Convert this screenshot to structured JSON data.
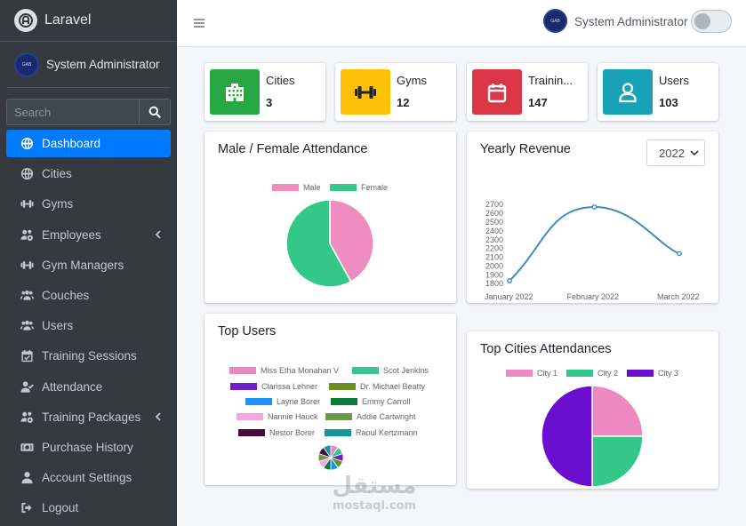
{
  "brand": {
    "name": "Laravel"
  },
  "user": {
    "name": "System Administrator",
    "avatar_text": "GAB"
  },
  "search": {
    "placeholder": "Search"
  },
  "sidebar": {
    "items": [
      {
        "label": "Dashboard",
        "icon": "globe-icon",
        "active": true
      },
      {
        "label": "Cities",
        "icon": "globe-icon"
      },
      {
        "label": "Gyms",
        "icon": "dumbbell-icon"
      },
      {
        "label": "Employees",
        "icon": "users-cog-icon",
        "has_children": true
      },
      {
        "label": "Gym Managers",
        "icon": "dumbbell-icon"
      },
      {
        "label": "Couches",
        "icon": "users-icon"
      },
      {
        "label": "Users",
        "icon": "users-icon"
      },
      {
        "label": "Training Sessions",
        "icon": "calendar-check-icon"
      },
      {
        "label": "Attendance",
        "icon": "user-check-icon"
      },
      {
        "label": "Training Packages",
        "icon": "users-cog-icon",
        "has_children": true
      },
      {
        "label": "Purchase History",
        "icon": "money-bill-icon"
      },
      {
        "label": "Account Settings",
        "icon": "user-icon"
      },
      {
        "label": "Logout",
        "icon": "sign-out-icon"
      }
    ]
  },
  "stats": [
    {
      "label": "Cities",
      "value": "3",
      "color": "#28a745",
      "icon": "building-icon"
    },
    {
      "label": "Gyms",
      "value": "12",
      "color": "#ffc107",
      "icon": "dumbbell-icon"
    },
    {
      "label": "Trainin...",
      "value": "147",
      "color": "#dc3545",
      "icon": "calendar-icon"
    },
    {
      "label": "Users",
      "value": "103",
      "color": "#17a2b8",
      "icon": "user-icon"
    }
  ],
  "cards": {
    "gender": {
      "title": "Male / Female Attendance"
    },
    "revenue": {
      "title": "Yearly Revenue",
      "year": "2022"
    },
    "top_users": {
      "title": "Top Users"
    },
    "top_cities": {
      "title": "Top Cities Attendances"
    }
  },
  "chart_data": [
    {
      "type": "pie",
      "title": "Male / Female Attendance",
      "categories": [
        "Male",
        "Female"
      ],
      "values": [
        42,
        58
      ],
      "colors": [
        "#f08dc0",
        "#33c88a"
      ],
      "legend": "top"
    },
    {
      "type": "line",
      "title": "Yearly Revenue",
      "x": [
        "January 2022",
        "February 2022",
        "March 2022"
      ],
      "values": [
        1830,
        2670,
        2140
      ],
      "y_ticks": [
        1800,
        1900,
        2000,
        2100,
        2200,
        2300,
        2400,
        2500,
        2600,
        2700
      ],
      "ylim": [
        1800,
        2700
      ],
      "color": "#3c8dbc",
      "grid": false
    },
    {
      "type": "pie",
      "title": "Top Users",
      "categories": [
        "Miss Etha Monahan V",
        "Scot Jenkins",
        "Clarissa Lehner",
        "Dr. Michael Beatty",
        "Layne Borer",
        "Emmy Carroll",
        "Nannie Hauck",
        "Addie Cartwright",
        "Nestor Borer",
        "Raoul Kertzmann"
      ],
      "values": [
        10,
        10,
        10,
        10,
        10,
        10,
        10,
        10,
        10,
        10
      ],
      "colors": [
        "#e889c0",
        "#36c58d",
        "#6a1fc8",
        "#6b8e23",
        "#1e90ff",
        "#0b7a3b",
        "#f4a6e0",
        "#6a9a4a",
        "#4a0a3a",
        "#17979b"
      ],
      "legend": "top"
    },
    {
      "type": "pie",
      "title": "Top Cities Attendances",
      "categories": [
        "City 1",
        "City 2",
        "City 3"
      ],
      "values": [
        25,
        25,
        50
      ],
      "colors": [
        "#ee88c0",
        "#33c88a",
        "#6a0fd0"
      ],
      "legend": "top"
    }
  ],
  "watermark": {
    "arabic": "مستقل",
    "latin": "mostaql.com"
  }
}
